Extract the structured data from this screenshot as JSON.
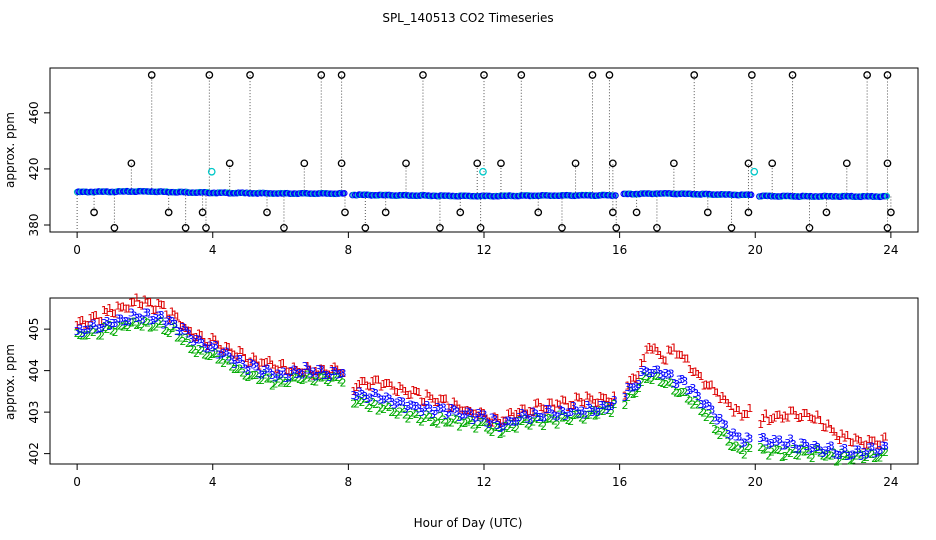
{
  "chart_data": [
    {
      "type": "scatter",
      "title": "SPL_140513  CO2 Timeseries",
      "xlabel": "",
      "ylabel": "approx. ppm",
      "xlim": [
        -0.8,
        24.8
      ],
      "ylim": [
        375,
        492
      ],
      "x_ticks": [
        0,
        4,
        8,
        12,
        16,
        20,
        24
      ],
      "y_ticks": [
        380,
        420,
        460
      ],
      "grid": false,
      "baseline": [
        [
          0.0,
          403.5
        ],
        [
          2.0,
          404.0
        ],
        [
          4.0,
          403.0
        ],
        [
          6.0,
          402.5
        ],
        [
          7.9,
          402.4
        ],
        [
          8.1,
          401.5
        ],
        [
          10.0,
          401.0
        ],
        [
          12.0,
          400.6
        ],
        [
          14.0,
          401.0
        ],
        [
          15.9,
          401.2
        ],
        [
          16.1,
          402.0
        ],
        [
          17.2,
          402.5
        ],
        [
          19.9,
          401.3
        ],
        [
          20.1,
          400.6
        ],
        [
          23.9,
          400.3
        ]
      ],
      "outliers_high": [
        2.2,
        3.9,
        5.1,
        7.2,
        7.8,
        10.2,
        12.0,
        13.1,
        15.2,
        15.7,
        18.2,
        19.9,
        21.1,
        23.3,
        23.9
      ],
      "outliers_mid": [
        1.6,
        4.5,
        6.7,
        7.8,
        9.7,
        11.8,
        12.5,
        14.7,
        15.8,
        17.6,
        19.8,
        20.5,
        22.7,
        23.9
      ],
      "outliers_low": [
        0.5,
        1.1,
        2.7,
        3.2,
        3.7,
        3.8,
        5.6,
        6.1,
        7.9,
        8.5,
        9.1,
        10.7,
        11.3,
        11.9,
        13.6,
        14.3,
        15.8,
        15.9,
        16.5,
        17.1,
        18.6,
        19.3,
        19.8,
        21.6,
        22.1,
        23.9,
        24.0
      ],
      "outlier_values": {
        "high": 487,
        "mid": 424,
        "low": 389,
        "lower": 378
      },
      "cyan_points": [
        [
          3.97,
          418
        ],
        [
          11.97,
          418
        ],
        [
          19.97,
          418
        ]
      ],
      "colors": {
        "baseline": "#0000ff",
        "baseline_edge": "#00bbbb",
        "outlier": "#000000",
        "cyan": "#00c8c8",
        "sample_line": "#555555"
      }
    },
    {
      "type": "line",
      "title": "",
      "xlabel": "Hour of Day (UTC)",
      "ylabel": "approx. ppm",
      "xlim": [
        -0.8,
        24.8
      ],
      "ylim": [
        401.75,
        405.75
      ],
      "x_ticks": [
        0,
        4,
        8,
        12,
        16,
        20,
        24
      ],
      "y_ticks": [
        402,
        403,
        404,
        405
      ],
      "grid": false,
      "series": [
        {
          "name": "1",
          "label_char": "1",
          "color": "#dd0000",
          "points": [
            [
              0.0,
              405.1
            ],
            [
              1.0,
              405.4
            ],
            [
              1.8,
              405.7
            ],
            [
              2.5,
              405.5
            ],
            [
              3.0,
              405.2
            ],
            [
              3.2,
              405.0
            ],
            [
              3.8,
              404.7
            ],
            [
              4.0,
              404.7
            ],
            [
              5.0,
              404.3
            ],
            [
              6.0,
              404.1
            ],
            [
              6.5,
              404.0
            ],
            [
              7.5,
              404.0
            ],
            [
              7.9,
              404.0
            ],
            [
              8.1,
              403.6
            ],
            [
              9.0,
              403.7
            ],
            [
              10.0,
              403.4
            ],
            [
              11.0,
              403.2
            ],
            [
              12.0,
              402.9
            ],
            [
              12.5,
              402.8
            ],
            [
              13.0,
              403.0
            ],
            [
              14.0,
              403.2
            ],
            [
              15.0,
              403.3
            ],
            [
              15.9,
              403.3
            ],
            [
              16.1,
              403.4
            ],
            [
              16.5,
              403.9
            ],
            [
              16.9,
              404.6
            ],
            [
              17.2,
              404.3
            ],
            [
              17.7,
              404.5
            ],
            [
              18.0,
              404.2
            ],
            [
              18.5,
              403.7
            ],
            [
              19.0,
              403.4
            ],
            [
              19.5,
              403.0
            ],
            [
              19.9,
              403.0
            ],
            [
              20.1,
              402.8
            ],
            [
              21.0,
              403.0
            ],
            [
              21.8,
              402.9
            ],
            [
              22.5,
              402.4
            ],
            [
              23.0,
              402.3
            ],
            [
              23.8,
              402.3
            ]
          ]
        },
        {
          "name": "2",
          "label_char": "2",
          "color": "#00aa00",
          "points": [
            [
              0.0,
              404.8
            ],
            [
              1.0,
              405.0
            ],
            [
              1.8,
              405.2
            ],
            [
              2.5,
              405.1
            ],
            [
              3.0,
              404.9
            ],
            [
              3.2,
              404.7
            ],
            [
              3.8,
              404.4
            ],
            [
              4.0,
              404.4
            ],
            [
              5.0,
              403.9
            ],
            [
              6.0,
              403.7
            ],
            [
              6.5,
              403.8
            ],
            [
              7.5,
              403.8
            ],
            [
              7.9,
              403.8
            ],
            [
              8.1,
              403.3
            ],
            [
              9.0,
              403.1
            ],
            [
              10.0,
              402.9
            ],
            [
              11.0,
              402.8
            ],
            [
              12.0,
              402.7
            ],
            [
              12.5,
              402.5
            ],
            [
              13.0,
              402.7
            ],
            [
              14.0,
              402.8
            ],
            [
              15.0,
              402.9
            ],
            [
              15.9,
              403.1
            ],
            [
              16.1,
              403.2
            ],
            [
              16.5,
              403.6
            ],
            [
              16.9,
              403.9
            ],
            [
              17.2,
              403.8
            ],
            [
              17.7,
              403.5
            ],
            [
              18.0,
              403.4
            ],
            [
              18.5,
              403.0
            ],
            [
              19.0,
              402.5
            ],
            [
              19.5,
              402.1
            ],
            [
              19.9,
              402.1
            ],
            [
              20.1,
              402.1
            ],
            [
              21.0,
              402.0
            ],
            [
              21.8,
              402.0
            ],
            [
              22.5,
              401.9
            ],
            [
              23.0,
              401.9
            ],
            [
              23.8,
              402.0
            ]
          ]
        },
        {
          "name": "3",
          "label_char": "3",
          "color": "#0000ff",
          "points": [
            [
              0.0,
              404.95
            ],
            [
              1.0,
              405.15
            ],
            [
              1.8,
              405.35
            ],
            [
              2.5,
              405.25
            ],
            [
              3.0,
              405.05
            ],
            [
              3.2,
              404.85
            ],
            [
              3.8,
              404.55
            ],
            [
              4.0,
              404.55
            ],
            [
              5.0,
              404.1
            ],
            [
              6.0,
              403.85
            ],
            [
              6.5,
              404.0
            ],
            [
              7.5,
              403.95
            ],
            [
              7.9,
              403.95
            ],
            [
              8.1,
              403.45
            ],
            [
              9.0,
              403.35
            ],
            [
              10.0,
              403.1
            ],
            [
              11.0,
              403.0
            ],
            [
              12.0,
              402.85
            ],
            [
              12.5,
              402.65
            ],
            [
              13.0,
              402.85
            ],
            [
              14.0,
              403.0
            ],
            [
              15.0,
              403.05
            ],
            [
              15.9,
              403.2
            ],
            [
              16.1,
              403.35
            ],
            [
              16.5,
              403.75
            ],
            [
              16.9,
              404.05
            ],
            [
              17.2,
              403.95
            ],
            [
              17.7,
              403.75
            ],
            [
              18.0,
              403.6
            ],
            [
              18.5,
              403.2
            ],
            [
              19.0,
              402.7
            ],
            [
              19.5,
              402.3
            ],
            [
              19.9,
              402.3
            ],
            [
              20.1,
              402.3
            ],
            [
              21.0,
              402.25
            ],
            [
              21.8,
              402.15
            ],
            [
              22.5,
              402.05
            ],
            [
              23.0,
              402.05
            ],
            [
              23.8,
              402.15
            ]
          ]
        }
      ]
    }
  ]
}
